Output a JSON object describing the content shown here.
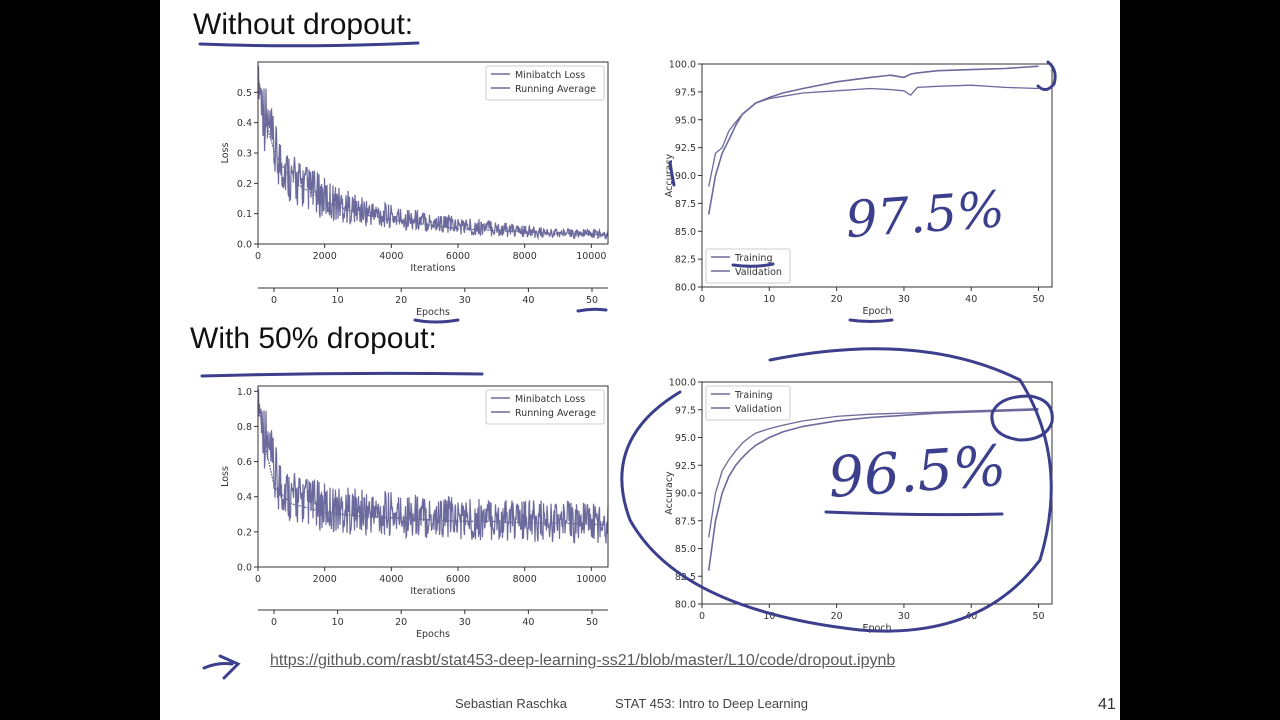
{
  "slide": {
    "heading_top": "Without dropout:",
    "heading_bottom": "With 50% dropout:",
    "link": "https://github.com/rasbt/stat453-deep-learning-ss21/blob/master/L10/code/dropout.ipynb",
    "footer_author": "Sebastian Raschka",
    "footer_course": "STAT 453: Intro to Deep Learning",
    "page_number": "41",
    "annotation_top": "97.5%",
    "annotation_bottom": "96.5%"
  },
  "colors": {
    "series": "#6c6a9c",
    "axis": "#333333",
    "ink": "#3b3f8c"
  },
  "chart_data": [
    {
      "type": "line",
      "title": "",
      "xlabel": "Iterations",
      "ylabel": "Loss",
      "secondary_xlabel": "Epochs",
      "xlim": [
        0,
        10500
      ],
      "ylim": [
        0,
        0.6
      ],
      "xticks": [
        "0",
        "2000",
        "4000",
        "6000",
        "8000",
        "10000"
      ],
      "yticks": [
        "0.0",
        "0.1",
        "0.2",
        "0.3",
        "0.4",
        "0.5"
      ],
      "secondary_xticks": [
        "0",
        "10",
        "20",
        "30",
        "40",
        "50"
      ],
      "legend": [
        "Minibatch Loss",
        "Running Average"
      ],
      "legend_position": "top-right",
      "series": [
        {
          "name": "Minibatch Loss",
          "x": [
            0,
            200,
            500,
            1000,
            2000,
            3000,
            4000,
            5000,
            6000,
            7000,
            8000,
            9000,
            10500
          ],
          "y_low": [
            0.5,
            0.3,
            0.2,
            0.13,
            0.08,
            0.06,
            0.05,
            0.04,
            0.03,
            0.025,
            0.02,
            0.02,
            0.015
          ],
          "y_high": [
            0.6,
            0.55,
            0.4,
            0.3,
            0.22,
            0.16,
            0.13,
            0.11,
            0.09,
            0.08,
            0.06,
            0.05,
            0.05
          ]
        },
        {
          "name": "Running Average",
          "x": [
            0,
            200,
            500,
            1000,
            2000,
            3000,
            4000,
            5000,
            6000,
            7000,
            8000,
            9000,
            10500
          ],
          "y": [
            0.55,
            0.42,
            0.3,
            0.21,
            0.14,
            0.1,
            0.08,
            0.065,
            0.05,
            0.045,
            0.04,
            0.035,
            0.03
          ]
        }
      ]
    },
    {
      "type": "line",
      "title": "",
      "xlabel": "Epoch",
      "ylabel": "Accuracy",
      "xlim": [
        0,
        52
      ],
      "ylim": [
        80,
        100
      ],
      "xticks": [
        "0",
        "10",
        "20",
        "30",
        "40",
        "50"
      ],
      "yticks": [
        "80.0",
        "82.5",
        "85.0",
        "87.5",
        "90.0",
        "92.5",
        "95.0",
        "97.5",
        "100.0"
      ],
      "legend": [
        "Training",
        "Validation"
      ],
      "legend_position": "bottom-left",
      "series": [
        {
          "name": "Training",
          "x": [
            1,
            2,
            3,
            4,
            5,
            6,
            7,
            8,
            10,
            12,
            15,
            20,
            25,
            28,
            30,
            31,
            32,
            35,
            40,
            45,
            50
          ],
          "y": [
            86.5,
            90.0,
            92.0,
            93.2,
            94.5,
            95.5,
            96.0,
            96.5,
            97.0,
            97.4,
            97.8,
            98.4,
            98.8,
            99.0,
            98.8,
            99.1,
            99.2,
            99.4,
            99.5,
            99.6,
            99.8
          ]
        },
        {
          "name": "Validation",
          "x": [
            1,
            2,
            3,
            4,
            5,
            6,
            7,
            8,
            10,
            12,
            15,
            20,
            25,
            28,
            30,
            31,
            32,
            35,
            40,
            45,
            50
          ],
          "y": [
            89.0,
            92.0,
            92.5,
            94.0,
            94.8,
            95.5,
            96.0,
            96.5,
            96.9,
            97.1,
            97.4,
            97.6,
            97.8,
            97.7,
            97.6,
            97.2,
            97.9,
            98.0,
            98.1,
            97.9,
            97.8
          ]
        }
      ]
    },
    {
      "type": "line",
      "title": "",
      "xlabel": "Iterations",
      "ylabel": "Loss",
      "secondary_xlabel": "Epochs",
      "xlim": [
        0,
        10500
      ],
      "ylim": [
        0,
        1.03
      ],
      "xticks": [
        "0",
        "2000",
        "4000",
        "6000",
        "8000",
        "10000"
      ],
      "yticks": [
        "0.0",
        "0.2",
        "0.4",
        "0.6",
        "0.8",
        "1.0"
      ],
      "secondary_xticks": [
        "0",
        "10",
        "20",
        "30",
        "40",
        "50"
      ],
      "legend": [
        "Minibatch Loss",
        "Running Average"
      ],
      "legend_position": "top-right",
      "series": [
        {
          "name": "Minibatch Loss",
          "x": [
            0,
            200,
            500,
            1000,
            2000,
            3000,
            4000,
            5000,
            6000,
            7000,
            8000,
            9000,
            10500
          ],
          "y_low": [
            0.9,
            0.55,
            0.32,
            0.25,
            0.2,
            0.18,
            0.17,
            0.16,
            0.15,
            0.15,
            0.14,
            0.14,
            0.13
          ],
          "y_high": [
            1.03,
            0.95,
            0.7,
            0.55,
            0.48,
            0.45,
            0.43,
            0.42,
            0.4,
            0.39,
            0.38,
            0.38,
            0.37
          ]
        },
        {
          "name": "Running Average",
          "x": [
            0,
            200,
            500,
            1000,
            2000,
            3000,
            4000,
            5000,
            6000,
            7000,
            8000,
            9000,
            10500
          ],
          "y": [
            0.95,
            0.7,
            0.45,
            0.36,
            0.31,
            0.29,
            0.28,
            0.27,
            0.26,
            0.26,
            0.25,
            0.25,
            0.24
          ]
        }
      ]
    },
    {
      "type": "line",
      "title": "",
      "xlabel": "Epoch",
      "ylabel": "Accuracy",
      "xlim": [
        0,
        52
      ],
      "ylim": [
        80,
        100
      ],
      "xticks": [
        "0",
        "10",
        "20",
        "30",
        "40",
        "50"
      ],
      "yticks": [
        "80.0",
        "82.5",
        "85.0",
        "87.5",
        "90.0",
        "92.5",
        "95.0",
        "97.5",
        "100.0"
      ],
      "legend": [
        "Training",
        "Validation"
      ],
      "legend_position": "top-left",
      "series": [
        {
          "name": "Training",
          "x": [
            1,
            2,
            3,
            4,
            5,
            6,
            7,
            8,
            10,
            12,
            15,
            20,
            25,
            30,
            35,
            40,
            45,
            50
          ],
          "y": [
            83.0,
            87.5,
            90.0,
            91.5,
            92.5,
            93.2,
            93.8,
            94.3,
            95.0,
            95.5,
            96.0,
            96.5,
            96.8,
            97.0,
            97.2,
            97.3,
            97.4,
            97.5
          ]
        },
        {
          "name": "Validation",
          "x": [
            1,
            2,
            3,
            4,
            5,
            6,
            7,
            8,
            10,
            12,
            15,
            20,
            25,
            30,
            35,
            40,
            45,
            50
          ],
          "y": [
            86.0,
            90.0,
            92.0,
            93.0,
            93.8,
            94.5,
            95.0,
            95.4,
            95.8,
            96.1,
            96.5,
            96.9,
            97.1,
            97.2,
            97.3,
            97.4,
            97.5,
            97.6
          ]
        }
      ]
    }
  ]
}
